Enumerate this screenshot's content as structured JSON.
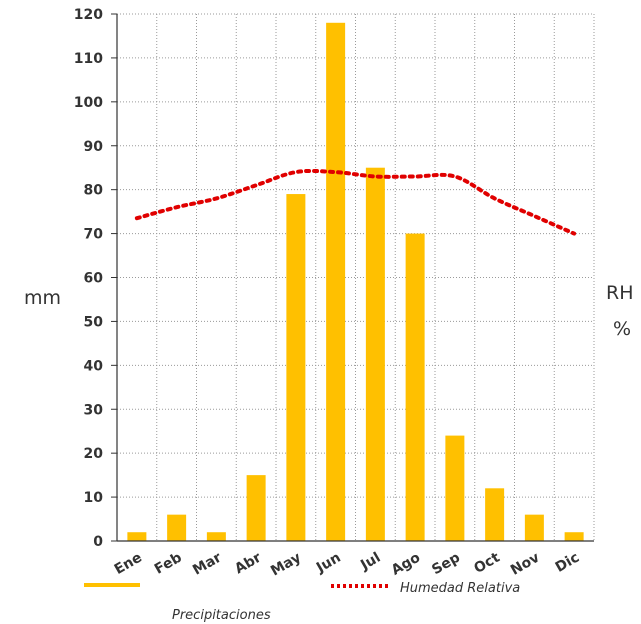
{
  "chart_data": {
    "type": "bar",
    "categories": [
      "Ene",
      "Feb",
      "Mar",
      "Abr",
      "May",
      "Jun",
      "Jul",
      "Ago",
      "Sep",
      "Oct",
      "Nov",
      "Dic"
    ],
    "series": [
      {
        "name": "Precipitaciones",
        "type": "bar",
        "axis": "left",
        "color": "#FFC000",
        "values": [
          2,
          6,
          2,
          15,
          79,
          118,
          85,
          70,
          24,
          12,
          6,
          2
        ]
      },
      {
        "name": "Humedad Relativa",
        "type": "line",
        "style": "dotted",
        "axis": "right",
        "color": "#E00000",
        "values": [
          73.5,
          76,
          78,
          81,
          84,
          84,
          83,
          83,
          83,
          78,
          74,
          70
        ]
      }
    ],
    "ylabel_left": "mm",
    "ylabel_right_line1": "RH",
    "ylabel_right_line2": "%",
    "ylim": [
      0,
      120
    ],
    "yticks": [
      0,
      10,
      20,
      30,
      40,
      50,
      60,
      70,
      80,
      90,
      100,
      110,
      120
    ],
    "grid": true,
    "legend_position": "bottom"
  }
}
